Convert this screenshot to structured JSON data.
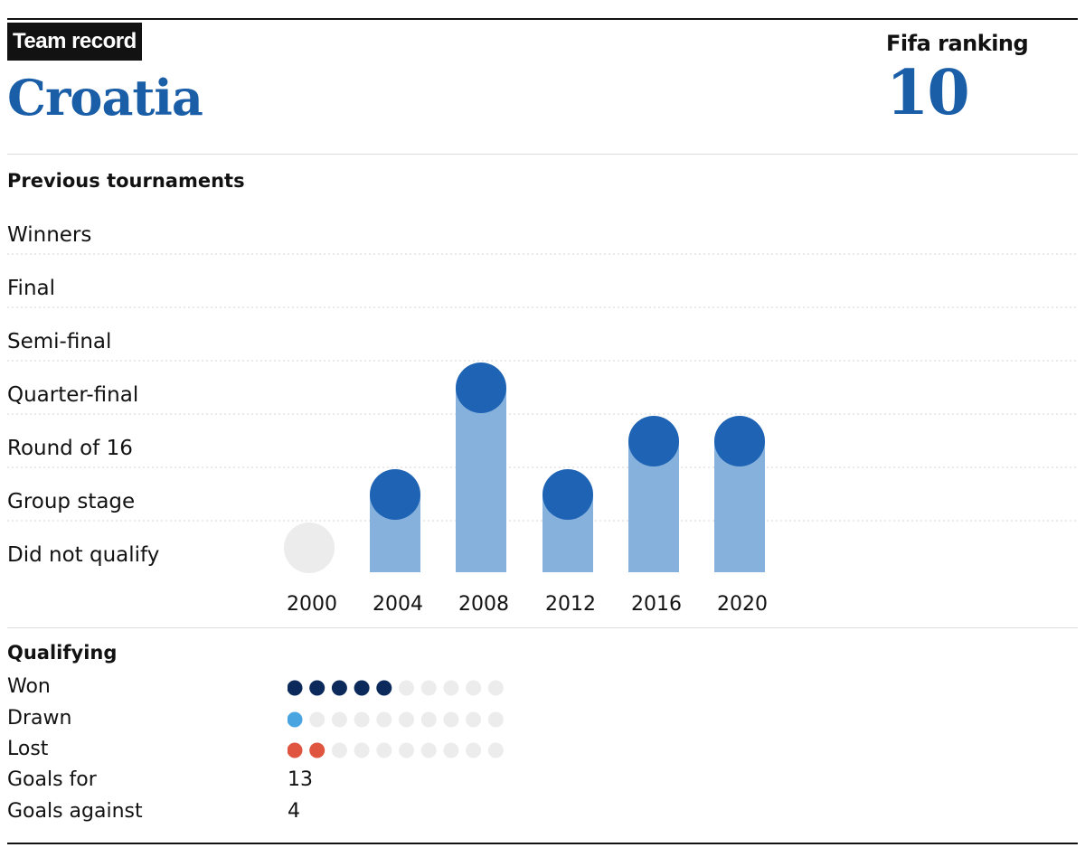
{
  "header": {
    "badge": "Team record",
    "team": "Croatia",
    "fifa_label": "Fifa ranking",
    "fifa_value": "10"
  },
  "colors": {
    "team_blue": "#1a5ea8",
    "marker_blue": "#1e63b4",
    "bar_blue": "#85b1dc",
    "dnq_grey": "#ececec",
    "won": "#0b2a5b",
    "drawn": "#4aa4e0",
    "lost": "#e0553f",
    "empty_dot": "#ececec"
  },
  "tournaments": {
    "title": "Previous tournaments",
    "stages": [
      "Winners",
      "Final",
      "Semi-final",
      "Quarter-final",
      "Round of 16",
      "Group stage",
      "Did not qualify"
    ]
  },
  "chart_data": {
    "type": "bar",
    "title": "Previous tournaments",
    "categories": [
      "2000",
      "2004",
      "2008",
      "2012",
      "2016",
      "2020"
    ],
    "y_categories": [
      "Did not qualify",
      "Group stage",
      "Round of 16",
      "Quarter-final",
      "Semi-final",
      "Final",
      "Winners"
    ],
    "values": [
      "Did not qualify",
      "Group stage",
      "Quarter-final",
      "Group stage",
      "Round of 16",
      "Round of 16"
    ],
    "grid": true
  },
  "qualifying": {
    "title": "Qualifying",
    "total_dots": 10,
    "rows": [
      {
        "label": "Won",
        "count": 5,
        "color_key": "won"
      },
      {
        "label": "Drawn",
        "count": 1,
        "color_key": "drawn"
      },
      {
        "label": "Lost",
        "count": 2,
        "color_key": "lost"
      }
    ],
    "goals_for_label": "Goals for",
    "goals_for": "13",
    "goals_against_label": "Goals against",
    "goals_against": "4"
  }
}
